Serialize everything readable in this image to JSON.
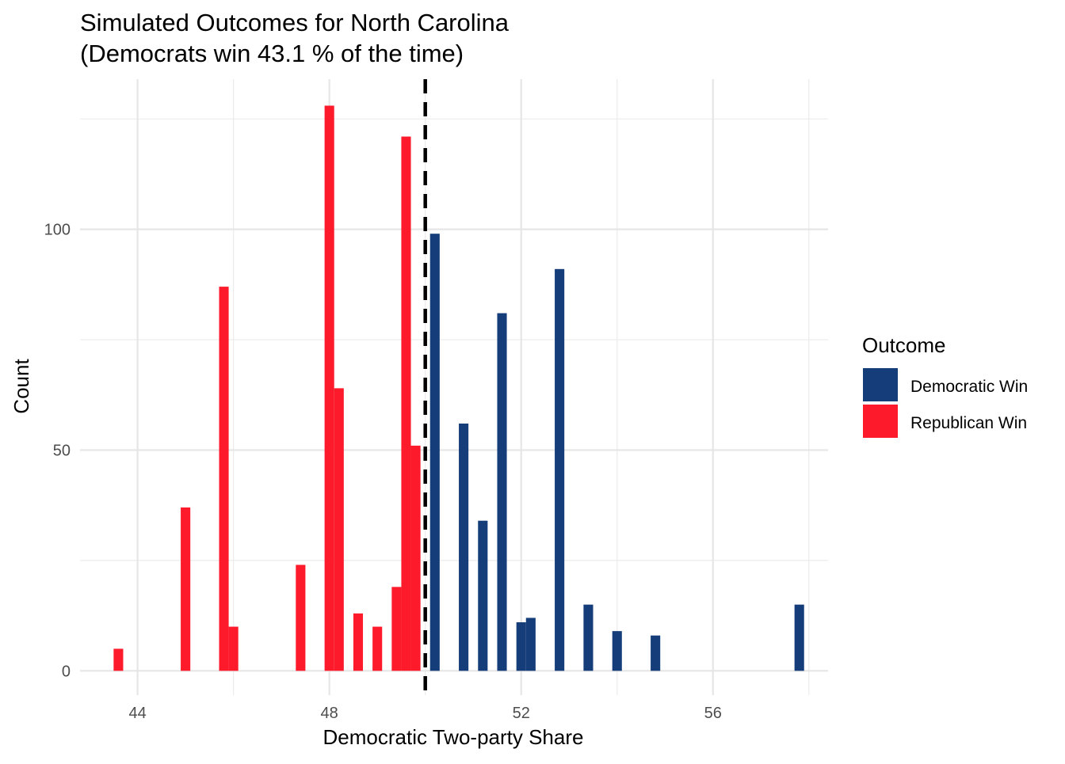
{
  "chart_data": {
    "type": "bar",
    "title_line1": "Simulated Outcomes for North Carolina",
    "title_line2": "(Democrats win 43.1 % of the time)",
    "xlabel": "Democratic Two-party Share",
    "ylabel": "Count",
    "xlim": [
      42.8,
      58.4
    ],
    "ylim": [
      -5.5,
      134
    ],
    "x_ticks": [
      44,
      48,
      52,
      56
    ],
    "y_ticks": [
      0,
      50,
      100
    ],
    "threshold_x": 50,
    "bin_width": 0.2,
    "grid": true,
    "legend_position": "right",
    "legend": {
      "title": "Outcome",
      "entries": [
        {
          "label": "Democratic Win",
          "color": "#143d7a"
        },
        {
          "label": "Republican Win",
          "color": "#fc1a2b"
        }
      ]
    },
    "series": [
      {
        "name": "Republican Win",
        "color": "#fc1a2b",
        "x": [
          43.6,
          45.0,
          45.8,
          46.0,
          47.4,
          48.0,
          48.2,
          48.6,
          49.0,
          49.4,
          49.6,
          49.8
        ],
        "values": [
          5,
          37,
          87,
          10,
          24,
          128,
          64,
          13,
          10,
          19,
          121,
          51
        ]
      },
      {
        "name": "Democratic Win",
        "color": "#143d7a",
        "x": [
          50.2,
          50.8,
          51.2,
          51.6,
          52.0,
          52.2,
          52.8,
          53.4,
          54.0,
          54.8,
          57.8
        ],
        "values": [
          99,
          56,
          34,
          81,
          11,
          12,
          91,
          15,
          9,
          8,
          15
        ]
      }
    ]
  }
}
